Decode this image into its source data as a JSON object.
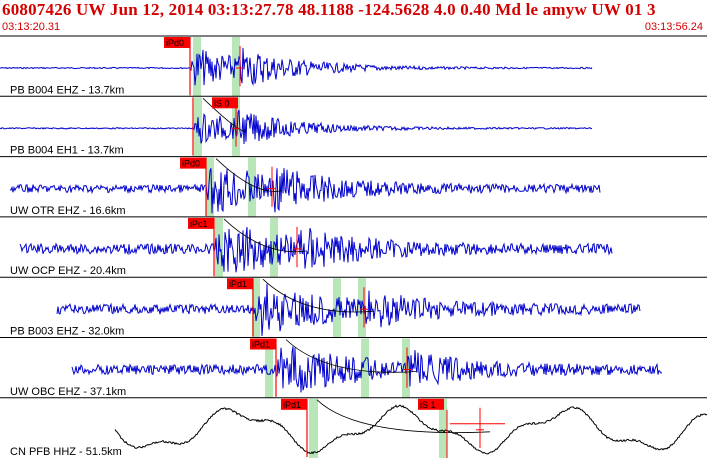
{
  "header": {
    "title": "60807426 UW Jun 12, 2014 03:13:27.78   48.1188 -124.5628  4.0 0.40 Md le amyw UW 01   3",
    "start_time": "03:13:20.31",
    "end_time": "03:13:56.24"
  },
  "colors": {
    "text_red": "#d40000",
    "trace_blue": "#0000cc",
    "trace_black": "#000000",
    "pick_red": "#ff0000",
    "window_green": "#b8e6b8"
  },
  "channels": [
    {
      "label": "PB B004 EHZ - 13.7km",
      "pick": "iPd0",
      "s_pick": ""
    },
    {
      "label": "PB B004 EH1 - 13.7km",
      "pick": "",
      "s_pick": "iS 0"
    },
    {
      "label": "UW OTR EHZ - 16.6km",
      "pick": "iPd0",
      "s_pick": ""
    },
    {
      "label": "UW OCP EHZ - 20.4km",
      "pick": "iPc1",
      "s_pick": ""
    },
    {
      "label": "PB B003 EHZ - 32.0km",
      "pick": "iPd1",
      "s_pick": ""
    },
    {
      "label": "UW OBC EHZ - 37.1km",
      "pick": "iPd1",
      "s_pick": ""
    },
    {
      "label": "CN PFB HHZ - 51.5km",
      "pick": "iPd1",
      "s_pick": "iS 1"
    }
  ]
}
